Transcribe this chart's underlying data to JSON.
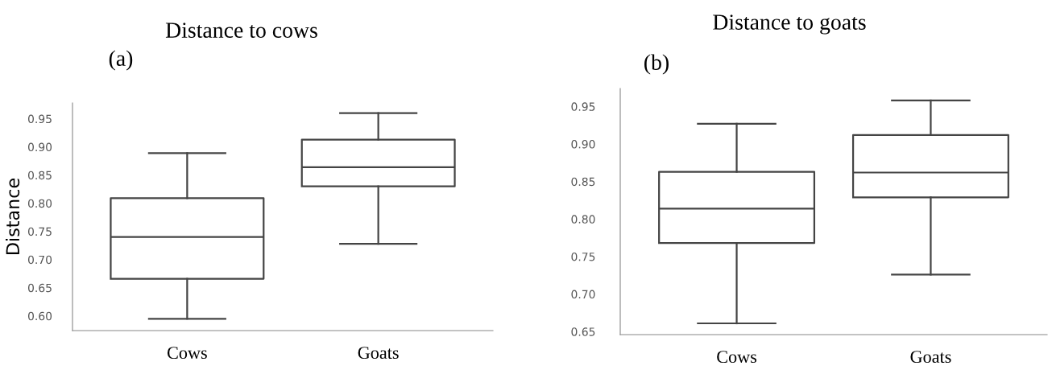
{
  "chart_data": [
    {
      "type": "box",
      "title": "Distance to cows",
      "subtitle": "(a)",
      "ylabel": "Distance",
      "categories": [
        "Cows",
        "Goats"
      ],
      "boxes": [
        {
          "low": 0.595,
          "q1": 0.666,
          "median": 0.74,
          "q3": 0.809,
          "high": 0.889
        },
        {
          "low": 0.728,
          "q1": 0.83,
          "median": 0.864,
          "q3": 0.913,
          "high": 0.96
        }
      ],
      "ylim": [
        0.574,
        0.978
      ],
      "yticks": [
        {
          "value": 0.6,
          "label": "0.60"
        },
        0.65,
        {
          "value": 0.7,
          "label": "0.70"
        },
        0.75,
        {
          "value": 0.8,
          "label": "0.80"
        },
        0.85,
        {
          "value": 0.9,
          "label": "0.90"
        },
        0.95
      ],
      "grid": false
    },
    {
      "type": "box",
      "title": "Distance to goats",
      "subtitle": "(b)",
      "categories": [
        "Cows",
        "Goats"
      ],
      "boxes": [
        {
          "low": 0.661,
          "q1": 0.768,
          "median": 0.814,
          "q3": 0.863,
          "high": 0.927
        },
        {
          "low": 0.726,
          "q1": 0.829,
          "median": 0.862,
          "q3": 0.912,
          "high": 0.958
        }
      ],
      "ylim": [
        0.646,
        0.974
      ],
      "yticks": [
        0.65,
        {
          "value": 0.7,
          "label": "0.70"
        },
        0.75,
        {
          "value": 0.8,
          "label": "0.80"
        },
        0.85,
        {
          "value": 0.9,
          "label": "0.90"
        },
        0.95
      ],
      "grid": false
    }
  ]
}
